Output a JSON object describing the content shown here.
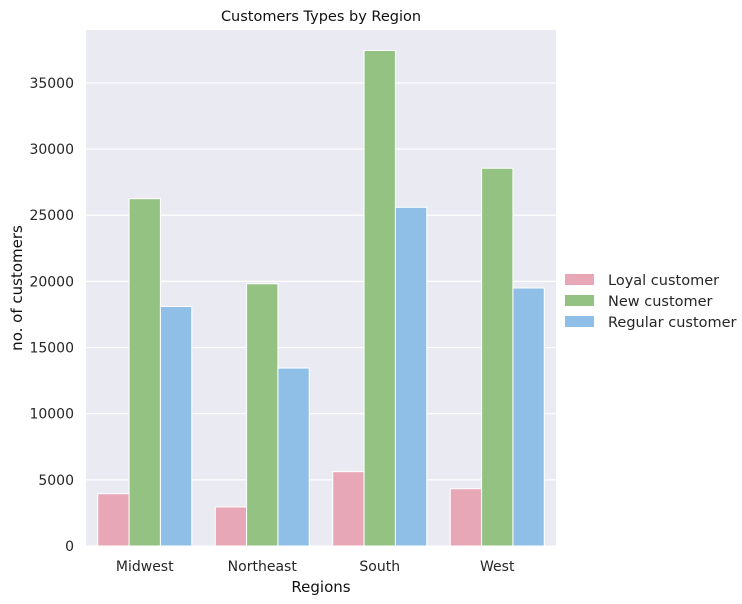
{
  "chart_data": {
    "type": "bar",
    "title": "Customers Types by Region",
    "xlabel": "Regions",
    "ylabel": "no. of customers",
    "categories": [
      "Midwest",
      "Northeast",
      "South",
      "West"
    ],
    "series": [
      {
        "name": "Loyal customer",
        "color": "#e8a7b6",
        "values": [
          3950,
          2950,
          5620,
          4330
        ]
      },
      {
        "name": "New customer",
        "color": "#93c283",
        "values": [
          26250,
          19820,
          37450,
          28550
        ]
      },
      {
        "name": "Regular customer",
        "color": "#8fbfe6",
        "values": [
          18100,
          13450,
          25600,
          19500
        ]
      }
    ],
    "ylim": [
      0,
      39000
    ],
    "yticks": [
      0,
      5000,
      10000,
      15000,
      20000,
      25000,
      30000,
      35000
    ],
    "grid": true,
    "legend_position": "right"
  }
}
